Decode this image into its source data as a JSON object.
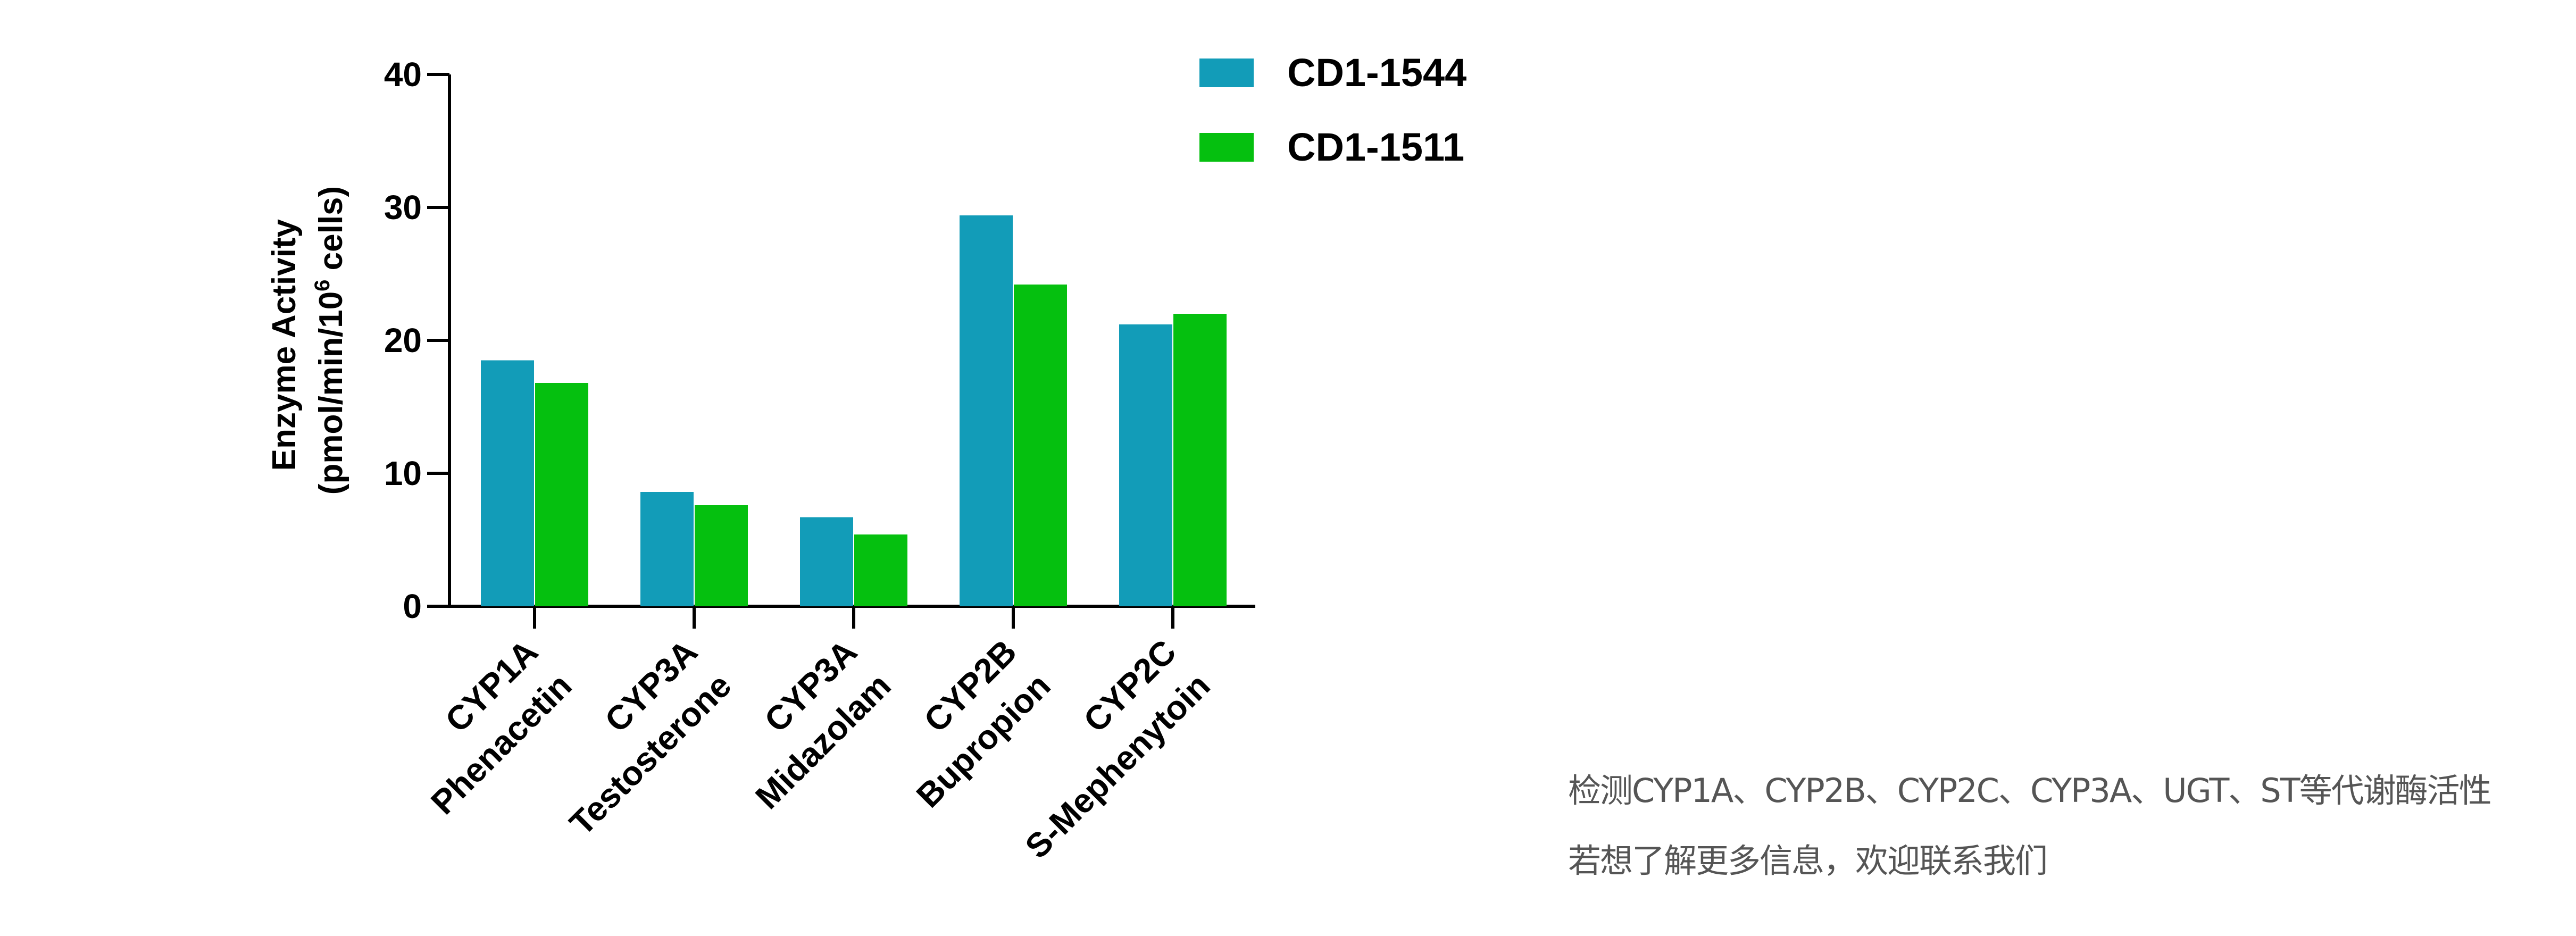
{
  "chart_data": {
    "type": "bar",
    "categories": [
      [
        "CYP1A",
        "Phenacetin"
      ],
      [
        "CYP3A",
        "Testosterone"
      ],
      [
        "CYP3A",
        "Midazolam"
      ],
      [
        "CYP2B",
        "Bupropion"
      ],
      [
        "CYP2C",
        "S-Mephenytoin"
      ]
    ],
    "series": [
      {
        "name": "CD1-1544",
        "color": "#129CB8",
        "values": [
          18.5,
          8.6,
          6.7,
          29.4,
          21.2
        ]
      },
      {
        "name": "CD1-1511",
        "color": "#05C00F",
        "values": [
          16.8,
          7.6,
          5.4,
          24.2,
          22.0
        ]
      }
    ],
    "ylabel": {
      "line1": "Enzyme Activity",
      "line2_prefix": "(pmol/min/10",
      "line2_sup": "6",
      "line2_suffix": " cells)"
    },
    "ylim": [
      0,
      40
    ],
    "yticks": [
      0,
      10,
      20,
      30,
      40
    ],
    "grid": false,
    "legend": "top-right"
  },
  "notes": {
    "line1": "检测CYP1A、CYP2B、CYP2C、CYP3A、UGT、ST等代谢酶活性",
    "line2": "若想了解更多信息，欢迎联系我们"
  }
}
